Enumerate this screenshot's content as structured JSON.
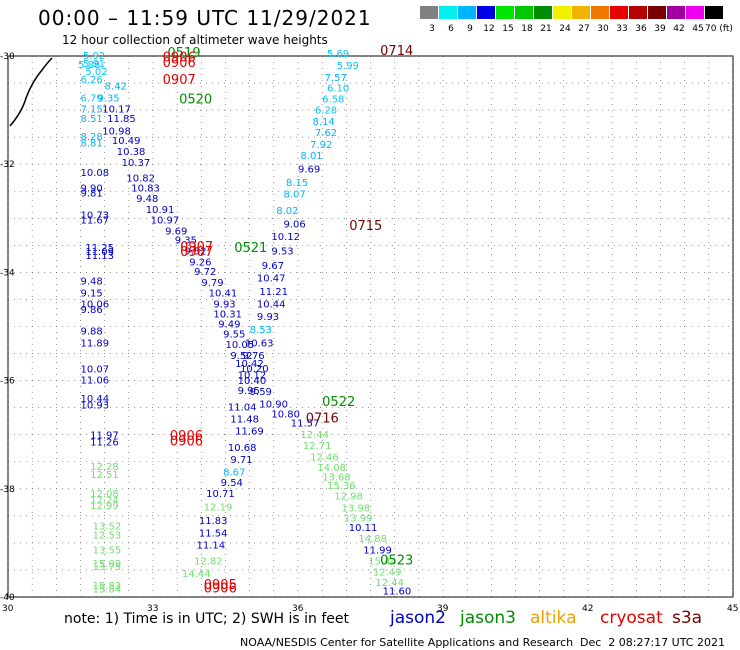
{
  "title": "00:00 – 11:59 UTC 11/29/2021",
  "subtitle": "12 hour collection of altimeter wave heights",
  "scale": {
    "labels": [
      "3",
      "6",
      "9",
      "12",
      "15",
      "18",
      "21",
      "24",
      "27",
      "30",
      "33",
      "36",
      "39",
      "42",
      "45",
      "70 (ft)"
    ],
    "colors": [
      "#808080",
      "#00f0f0",
      "#00b4ff",
      "#0000e6",
      "#00e600",
      "#00c800",
      "#008c00",
      "#f0f000",
      "#f0b400",
      "#f07800",
      "#e60000",
      "#b40000",
      "#780000",
      "#a000a0",
      "#f000f0",
      "#000000"
    ]
  },
  "axes": {
    "lat_labels": [
      "-30",
      "-32",
      "-34",
      "-36",
      "-38",
      "-40"
    ],
    "lon_labels": [
      "30",
      "33",
      "36",
      "39",
      "42",
      "45"
    ]
  },
  "time_labels": [
    {
      "text": "0519",
      "lat": -30.02,
      "lon": 33.3,
      "color": "#008c00"
    },
    {
      "text": "0906",
      "lat": -30.1,
      "lon": 33.2,
      "color": "#e60000"
    },
    {
      "text": "0906",
      "lat": -30.2,
      "lon": 33.2,
      "color": "#e60000"
    },
    {
      "text": "0907",
      "lat": -30.52,
      "lon": 33.2,
      "color": "#e60000"
    },
    {
      "text": "0520",
      "lat": -30.88,
      "lon": 33.54,
      "color": "#008c00"
    },
    {
      "text": "0907",
      "lat": -33.6,
      "lon": 33.56,
      "color": "#e60000"
    },
    {
      "text": "0907",
      "lat": -33.7,
      "lon": 33.56,
      "color": "#e60000"
    },
    {
      "text": "0521",
      "lat": -33.62,
      "lon": 34.68,
      "color": "#008c00"
    },
    {
      "text": "0714",
      "lat": -29.98,
      "lon": 37.7,
      "color": "#780000"
    },
    {
      "text": "0715",
      "lat": -33.22,
      "lon": 37.06,
      "color": "#780000"
    },
    {
      "text": "0522",
      "lat": -36.47,
      "lon": 36.5,
      "color": "#008c00"
    },
    {
      "text": "0716",
      "lat": -36.77,
      "lon": 36.16,
      "color": "#780000"
    },
    {
      "text": "0906",
      "lat": -37.1,
      "lon": 33.35,
      "color": "#e60000"
    },
    {
      "text": "0906",
      "lat": -37.2,
      "lon": 33.35,
      "color": "#e60000"
    },
    {
      "text": "0523",
      "lat": -39.4,
      "lon": 37.7,
      "color": "#008c00"
    },
    {
      "text": "0905",
      "lat": -39.85,
      "lon": 34.05,
      "color": "#e60000"
    },
    {
      "text": "0906",
      "lat": -39.92,
      "lon": 34.05,
      "color": "#e60000"
    }
  ],
  "wave_heights": [
    {
      "text": "5.92",
      "lat": -30.06,
      "lon": 31.55,
      "color": "#00c8ff"
    },
    {
      "text": "5.91",
      "lat": -30.2,
      "lon": 31.55,
      "color": "#00c8ff"
    },
    {
      "text": "5.88",
      "lat": -30.22,
      "lon": 31.45,
      "color": "#00c8ff"
    },
    {
      "text": "5.02",
      "lat": -30.35,
      "lon": 31.6,
      "color": "#00c8ff"
    },
    {
      "text": "6.26",
      "lat": -30.5,
      "lon": 31.5,
      "color": "#00c8ff"
    },
    {
      "text": "8.42",
      "lat": -30.62,
      "lon": 32.0,
      "color": "#00b4ff"
    },
    {
      "text": "6.79",
      "lat": -30.84,
      "lon": 31.5,
      "color": "#00c8ff"
    },
    {
      "text": "9.35",
      "lat": -30.84,
      "lon": 31.85,
      "color": "#00b4ff"
    },
    {
      "text": "7.15",
      "lat": -31.04,
      "lon": 31.5,
      "color": "#00b4ff"
    },
    {
      "text": "10.17",
      "lat": -31.04,
      "lon": 31.95,
      "color": "#0000c8"
    },
    {
      "text": "8.51",
      "lat": -31.22,
      "lon": 31.5,
      "color": "#00b4ff"
    },
    {
      "text": "11.85",
      "lat": -31.22,
      "lon": 32.05,
      "color": "#0000c8"
    },
    {
      "text": "10.98",
      "lat": -31.45,
      "lon": 31.95,
      "color": "#0000c8"
    },
    {
      "text": "8.28",
      "lat": -31.55,
      "lon": 31.5,
      "color": "#00b4ff"
    },
    {
      "text": "10.49",
      "lat": -31.63,
      "lon": 32.15,
      "color": "#0000c8"
    },
    {
      "text": "8.81",
      "lat": -31.67,
      "lon": 31.5,
      "color": "#00b4ff"
    },
    {
      "text": "10.38",
      "lat": -31.83,
      "lon": 32.25,
      "color": "#0000c8"
    },
    {
      "text": "10.37",
      "lat": -32.03,
      "lon": 32.35,
      "color": "#0000c8"
    },
    {
      "text": "10.08",
      "lat": -32.22,
      "lon": 31.5,
      "color": "#0000c8"
    },
    {
      "text": "10.82",
      "lat": -32.32,
      "lon": 32.45,
      "color": "#0000c8"
    },
    {
      "text": "9.90",
      "lat": -32.5,
      "lon": 31.5,
      "color": "#0000c8"
    },
    {
      "text": "10.83",
      "lat": -32.5,
      "lon": 32.55,
      "color": "#0000c8"
    },
    {
      "text": "9.81",
      "lat": -32.6,
      "lon": 31.5,
      "color": "#0000c8"
    },
    {
      "text": "9.48",
      "lat": -32.7,
      "lon": 32.65,
      "color": "#0000c8"
    },
    {
      "text": "10.91",
      "lat": -32.9,
      "lon": 32.85,
      "color": "#0000c8"
    },
    {
      "text": "10.73",
      "lat": -33.0,
      "lon": 31.5,
      "color": "#0000c8"
    },
    {
      "text": "11.67",
      "lat": -33.1,
      "lon": 31.5,
      "color": "#0000c8"
    },
    {
      "text": "10.97",
      "lat": -33.1,
      "lon": 32.95,
      "color": "#0000c8"
    },
    {
      "text": "9.69",
      "lat": -33.3,
      "lon": 33.25,
      "color": "#0000c8"
    },
    {
      "text": "9.35",
      "lat": -33.47,
      "lon": 33.45,
      "color": "#0000c8"
    },
    {
      "text": "11.25",
      "lat": -33.6,
      "lon": 31.6,
      "color": "#0000c8"
    },
    {
      "text": "11.09",
      "lat": -33.68,
      "lon": 31.6,
      "color": "#0000c8"
    },
    {
      "text": "11.13",
      "lat": -33.75,
      "lon": 31.6,
      "color": "#0000c8"
    },
    {
      "text": "9.52",
      "lat": -33.67,
      "lon": 33.65,
      "color": "#0000c8"
    },
    {
      "text": "9.26",
      "lat": -33.87,
      "lon": 33.75,
      "color": "#0000c8"
    },
    {
      "text": "9.72",
      "lat": -34.05,
      "lon": 33.85,
      "color": "#0000c8"
    },
    {
      "text": "9.48",
      "lat": -34.22,
      "lon": 31.5,
      "color": "#0000c8"
    },
    {
      "text": "9.79",
      "lat": -34.25,
      "lon": 34.0,
      "color": "#0000c8"
    },
    {
      "text": "9.15",
      "lat": -34.45,
      "lon": 31.5,
      "color": "#0000c8"
    },
    {
      "text": "10.41",
      "lat": -34.45,
      "lon": 34.15,
      "color": "#0000c8"
    },
    {
      "text": "9.93",
      "lat": -34.65,
      "lon": 34.25,
      "color": "#0000c8"
    },
    {
      "text": "10.06",
      "lat": -34.65,
      "lon": 31.5,
      "color": "#0000c8"
    },
    {
      "text": "9.86",
      "lat": -34.75,
      "lon": 31.5,
      "color": "#0000c8"
    },
    {
      "text": "10.31",
      "lat": -34.83,
      "lon": 34.25,
      "color": "#0000c8"
    },
    {
      "text": "9.49",
      "lat": -35.02,
      "lon": 34.35,
      "color": "#0000c8"
    },
    {
      "text": "9.88",
      "lat": -35.15,
      "lon": 31.5,
      "color": "#0000c8"
    },
    {
      "text": "9.55",
      "lat": -35.2,
      "lon": 34.45,
      "color": "#0000c8"
    },
    {
      "text": "11.89",
      "lat": -35.37,
      "lon": 31.5,
      "color": "#0000c8"
    },
    {
      "text": "10.05",
      "lat": -35.4,
      "lon": 34.5,
      "color": "#0000c8"
    },
    {
      "text": "9.52",
      "lat": -35.6,
      "lon": 34.6,
      "color": "#0000c8"
    },
    {
      "text": "10.42",
      "lat": -35.75,
      "lon": 34.7,
      "color": "#0000c8"
    },
    {
      "text": "10.07",
      "lat": -35.85,
      "lon": 31.5,
      "color": "#0000c8"
    },
    {
      "text": "11.06",
      "lat": -36.05,
      "lon": 31.5,
      "color": "#0000c8"
    },
    {
      "text": "10.12",
      "lat": -35.96,
      "lon": 34.75,
      "color": "#0000c8"
    },
    {
      "text": "9.95",
      "lat": -36.25,
      "lon": 34.75,
      "color": "#0000c8"
    },
    {
      "text": "10.44",
      "lat": -36.4,
      "lon": 31.5,
      "color": "#0000c8"
    },
    {
      "text": "10.93",
      "lat": -36.52,
      "lon": 31.5,
      "color": "#0000c8"
    },
    {
      "text": "11.04",
      "lat": -36.55,
      "lon": 34.55,
      "color": "#0000c8"
    },
    {
      "text": "11.48",
      "lat": -36.77,
      "lon": 34.6,
      "color": "#0000c8"
    },
    {
      "text": "11.69",
      "lat": -37.0,
      "lon": 34.7,
      "color": "#0000c8"
    },
    {
      "text": "11.97",
      "lat": -37.07,
      "lon": 31.7,
      "color": "#0000c8"
    },
    {
      "text": "11.26",
      "lat": -37.2,
      "lon": 31.7,
      "color": "#0000c8"
    },
    {
      "text": "10.68",
      "lat": -37.3,
      "lon": 34.55,
      "color": "#0000c8"
    },
    {
      "text": "9.71",
      "lat": -37.52,
      "lon": 34.6,
      "color": "#0000c8"
    },
    {
      "text": "8.67",
      "lat": -37.75,
      "lon": 34.45,
      "color": "#00b4ff"
    },
    {
      "text": "9.54",
      "lat": -37.95,
      "lon": 34.4,
      "color": "#0000c8"
    },
    {
      "text": "10.71",
      "lat": -38.15,
      "lon": 34.1,
      "color": "#0000c8"
    },
    {
      "text": "12.19",
      "lat": -38.4,
      "lon": 34.05,
      "color": "#70e070"
    },
    {
      "text": "11.83",
      "lat": -38.65,
      "lon": 33.95,
      "color": "#0000c8"
    },
    {
      "text": "11.54",
      "lat": -38.88,
      "lon": 33.95,
      "color": "#0000c8"
    },
    {
      "text": "11.14",
      "lat": -39.1,
      "lon": 33.9,
      "color": "#0000c8"
    },
    {
      "text": "12.82",
      "lat": -39.4,
      "lon": 33.85,
      "color": "#70e070"
    },
    {
      "text": "14.44",
      "lat": -39.63,
      "lon": 33.6,
      "color": "#70e070"
    },
    {
      "text": "12.28",
      "lat": -37.65,
      "lon": 31.7,
      "color": "#70e070"
    },
    {
      "text": "12.51",
      "lat": -37.8,
      "lon": 31.7,
      "color": "#70e070"
    },
    {
      "text": "12.08",
      "lat": -38.15,
      "lon": 31.7,
      "color": "#70e070"
    },
    {
      "text": "12.24",
      "lat": -38.27,
      "lon": 31.7,
      "color": "#70e070"
    },
    {
      "text": "12.99",
      "lat": -38.37,
      "lon": 31.7,
      "color": "#70e070"
    },
    {
      "text": "13.52",
      "lat": -38.75,
      "lon": 31.75,
      "color": "#70e070"
    },
    {
      "text": "12.53",
      "lat": -38.92,
      "lon": 31.75,
      "color": "#70e070"
    },
    {
      "text": "13.55",
      "lat": -39.2,
      "lon": 31.75,
      "color": "#70e070"
    },
    {
      "text": "15.09",
      "lat": -39.45,
      "lon": 31.75,
      "color": "#70e070"
    },
    {
      "text": "13.75",
      "lat": -39.5,
      "lon": 31.75,
      "color": "#70e070"
    },
    {
      "text": "15.83",
      "lat": -39.85,
      "lon": 31.75,
      "color": "#70e070"
    },
    {
      "text": "15.84",
      "lat": -39.92,
      "lon": 31.75,
      "color": "#70e070"
    },
    {
      "text": "5.69",
      "lat": -30.02,
      "lon": 36.6,
      "color": "#00c8ff"
    },
    {
      "text": "5.99",
      "lat": -30.24,
      "lon": 36.8,
      "color": "#00c8ff"
    },
    {
      "text": "7.57",
      "lat": -30.46,
      "lon": 36.55,
      "color": "#00b4ff"
    },
    {
      "text": "6.10",
      "lat": -30.66,
      "lon": 36.6,
      "color": "#00c8ff"
    },
    {
      "text": "6.58",
      "lat": -30.86,
      "lon": 36.5,
      "color": "#00c8ff"
    },
    {
      "text": "6.28",
      "lat": -31.06,
      "lon": 36.35,
      "color": "#00c8ff"
    },
    {
      "text": "8.14",
      "lat": -31.28,
      "lon": 36.3,
      "color": "#00b4ff"
    },
    {
      "text": "7.62",
      "lat": -31.48,
      "lon": 36.35,
      "color": "#00b4ff"
    },
    {
      "text": "7.92",
      "lat": -31.7,
      "lon": 36.25,
      "color": "#00b4ff"
    },
    {
      "text": "8.01",
      "lat": -31.9,
      "lon": 36.05,
      "color": "#00b4ff"
    },
    {
      "text": "9.69",
      "lat": -32.15,
      "lon": 36.0,
      "color": "#0000c8"
    },
    {
      "text": "8.15",
      "lat": -32.4,
      "lon": 35.75,
      "color": "#00b4ff"
    },
    {
      "text": "8.07",
      "lat": -32.62,
      "lon": 35.7,
      "color": "#00b4ff"
    },
    {
      "text": "8.02",
      "lat": -32.92,
      "lon": 35.55,
      "color": "#00b4ff"
    },
    {
      "text": "9.06",
      "lat": -33.17,
      "lon": 35.7,
      "color": "#0000c8"
    },
    {
      "text": "10.12",
      "lat": -33.4,
      "lon": 35.45,
      "color": "#0000c8"
    },
    {
      "text": "9.53",
      "lat": -33.67,
      "lon": 35.45,
      "color": "#0000c8"
    },
    {
      "text": "9.67",
      "lat": -33.94,
      "lon": 35.25,
      "color": "#0000c8"
    },
    {
      "text": "10.47",
      "lat": -34.17,
      "lon": 35.15,
      "color": "#0000c8"
    },
    {
      "text": "11.21",
      "lat": -34.42,
      "lon": 35.2,
      "color": "#0000c8"
    },
    {
      "text": "10.44",
      "lat": -34.65,
      "lon": 35.15,
      "color": "#0000c8"
    },
    {
      "text": "9.93",
      "lat": -34.88,
      "lon": 35.15,
      "color": "#0000c8"
    },
    {
      "text": "8.53",
      "lat": -35.12,
      "lon": 35.0,
      "color": "#00b4ff"
    },
    {
      "text": "10.63",
      "lat": -35.37,
      "lon": 34.9,
      "color": "#0000c8"
    },
    {
      "text": "9.76",
      "lat": -35.6,
      "lon": 34.85,
      "color": "#0000c8"
    },
    {
      "text": "10.20",
      "lat": -35.84,
      "lon": 34.8,
      "color": "#0000c8"
    },
    {
      "text": "10.40",
      "lat": -36.06,
      "lon": 34.75,
      "color": "#0000c8"
    },
    {
      "text": "9.59",
      "lat": -36.27,
      "lon": 35.0,
      "color": "#0000c8"
    },
    {
      "text": "10.90",
      "lat": -36.5,
      "lon": 35.2,
      "color": "#0000c8"
    },
    {
      "text": "10.80",
      "lat": -36.68,
      "lon": 35.45,
      "color": "#0000c8"
    },
    {
      "text": "11.57",
      "lat": -36.85,
      "lon": 35.85,
      "color": "#0000c8"
    },
    {
      "text": "12.44",
      "lat": -37.06,
      "lon": 36.05,
      "color": "#70e070"
    },
    {
      "text": "12.71",
      "lat": -37.26,
      "lon": 36.1,
      "color": "#70e070"
    },
    {
      "text": "12.46",
      "lat": -37.48,
      "lon": 36.25,
      "color": "#70e070"
    },
    {
      "text": "14.08",
      "lat": -37.67,
      "lon": 36.4,
      "color": "#70e070"
    },
    {
      "text": "13.68",
      "lat": -37.85,
      "lon": 36.5,
      "color": "#70e070"
    },
    {
      "text": "15.36",
      "lat": -38.0,
      "lon": 36.6,
      "color": "#70e070"
    },
    {
      "text": "12.98",
      "lat": -38.2,
      "lon": 36.75,
      "color": "#70e070"
    },
    {
      "text": "13.98",
      "lat": -38.42,
      "lon": 36.9,
      "color": "#70e070"
    },
    {
      "text": "13.99",
      "lat": -38.6,
      "lon": 36.95,
      "color": "#70e070"
    },
    {
      "text": "10.11",
      "lat": -38.78,
      "lon": 37.05,
      "color": "#0000c8"
    },
    {
      "text": "14.88",
      "lat": -38.98,
      "lon": 37.25,
      "color": "#70e070"
    },
    {
      "text": "11.99",
      "lat": -39.2,
      "lon": 37.35,
      "color": "#0000c8"
    },
    {
      "text": "15.44",
      "lat": -39.4,
      "lon": 37.45,
      "color": "#70e070"
    },
    {
      "text": "12.49",
      "lat": -39.6,
      "lon": 37.55,
      "color": "#70e070"
    },
    {
      "text": "12.44",
      "lat": -39.8,
      "lon": 37.6,
      "color": "#70e070"
    },
    {
      "text": "11.60",
      "lat": -39.95,
      "lon": 37.75,
      "color": "#0000c8"
    }
  ],
  "note": "note:  1) Time is in UTC;  2) SWH is in feet",
  "legend": [
    {
      "text": "jason2",
      "color": "#0000c8"
    },
    {
      "text": "jason3",
      "color": "#008c00"
    },
    {
      "text": "altika",
      "color": "#f0a000"
    },
    {
      "text": "cryosat",
      "color": "#e60000"
    },
    {
      "text": "s3a",
      "color": "#780000"
    }
  ],
  "credit": "NOAA/NESDIS Center for Satellite Applications and Research",
  "stamp": "Dec  2 08:27:17 UTC 2021"
}
